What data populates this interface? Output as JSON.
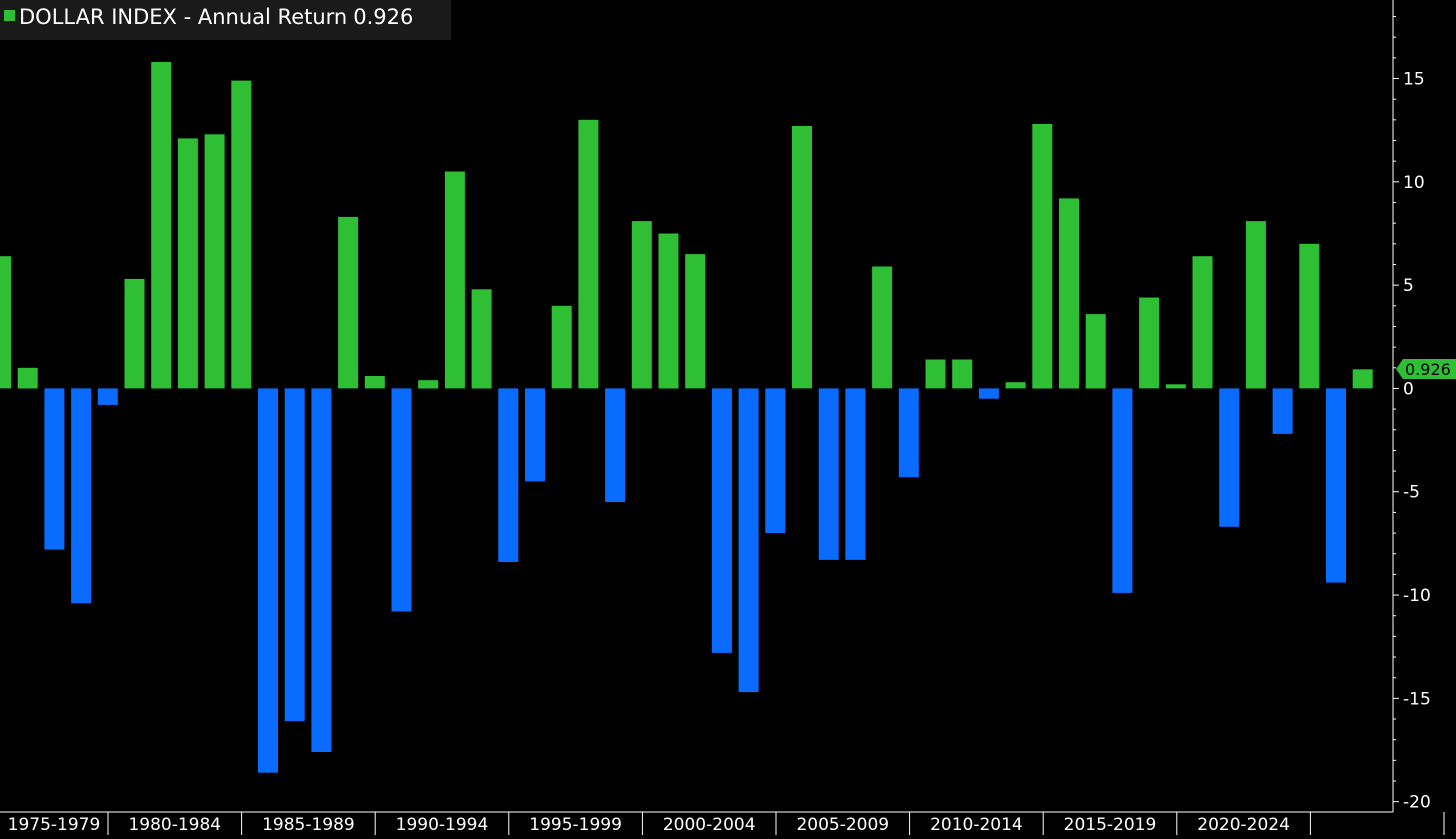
{
  "title": {
    "series_name": "DOLLAR INDEX - Annual Return",
    "last_value": "0.926"
  },
  "colors": {
    "positive": "#2fbf35",
    "negative": "#0a6cff",
    "background": "#000000",
    "axis": "#ffffff",
    "legend_box_bg": "#1a1a1a"
  },
  "value_tag": "0.926",
  "chart_data": {
    "type": "bar",
    "title": "DOLLAR INDEX - Annual Return 0.926",
    "x": [
      1974,
      1975,
      1976,
      1977,
      1978,
      1979,
      1980,
      1981,
      1982,
      1983,
      1984,
      1985,
      1986,
      1987,
      1988,
      1989,
      1990,
      1991,
      1992,
      1993,
      1994,
      1995,
      1996,
      1997,
      1998,
      1999,
      2000,
      2001,
      2002,
      2003,
      2004,
      2005,
      2006,
      2007,
      2008,
      2009,
      2010,
      2011,
      2012,
      2013,
      2014,
      2015,
      2016,
      2017,
      2018,
      2019,
      2020,
      2021,
      2022,
      2023,
      2024,
      2025
    ],
    "values": [
      6.4,
      1.0,
      -7.8,
      -10.4,
      -0.8,
      5.3,
      15.8,
      12.1,
      12.3,
      14.9,
      -18.6,
      -16.1,
      -17.6,
      8.3,
      0.6,
      -10.8,
      0.4,
      10.5,
      4.8,
      -8.4,
      -4.5,
      4.0,
      13.0,
      -5.5,
      8.1,
      7.5,
      6.5,
      -12.8,
      -14.7,
      -7.0,
      12.7,
      -8.3,
      -8.3,
      5.9,
      -4.3,
      1.4,
      1.4,
      -0.5,
      0.3,
      12.8,
      9.2,
      3.6,
      -9.9,
      4.4,
      0.2,
      6.4,
      -6.7,
      8.1,
      -2.2,
      7.0,
      -9.4,
      0.926
    ],
    "period_labels": [
      "1975-1979",
      "1980-1984",
      "1985-1989",
      "1990-1994",
      "1995-1999",
      "2000-2004",
      "2005-2009",
      "2010-2014",
      "2015-2019",
      "2020-2024"
    ],
    "yticks": [
      "15",
      "10",
      "5",
      "0",
      "-5",
      "-10",
      "-15",
      "-20"
    ],
    "ytick_values": [
      15,
      10,
      5,
      0,
      -5,
      -10,
      -15,
      -20
    ],
    "ylim": [
      -20.5,
      18.8
    ],
    "xlabel": "",
    "ylabel": "",
    "y_axis_side": "right",
    "grid": false,
    "last_value": 0.926
  }
}
